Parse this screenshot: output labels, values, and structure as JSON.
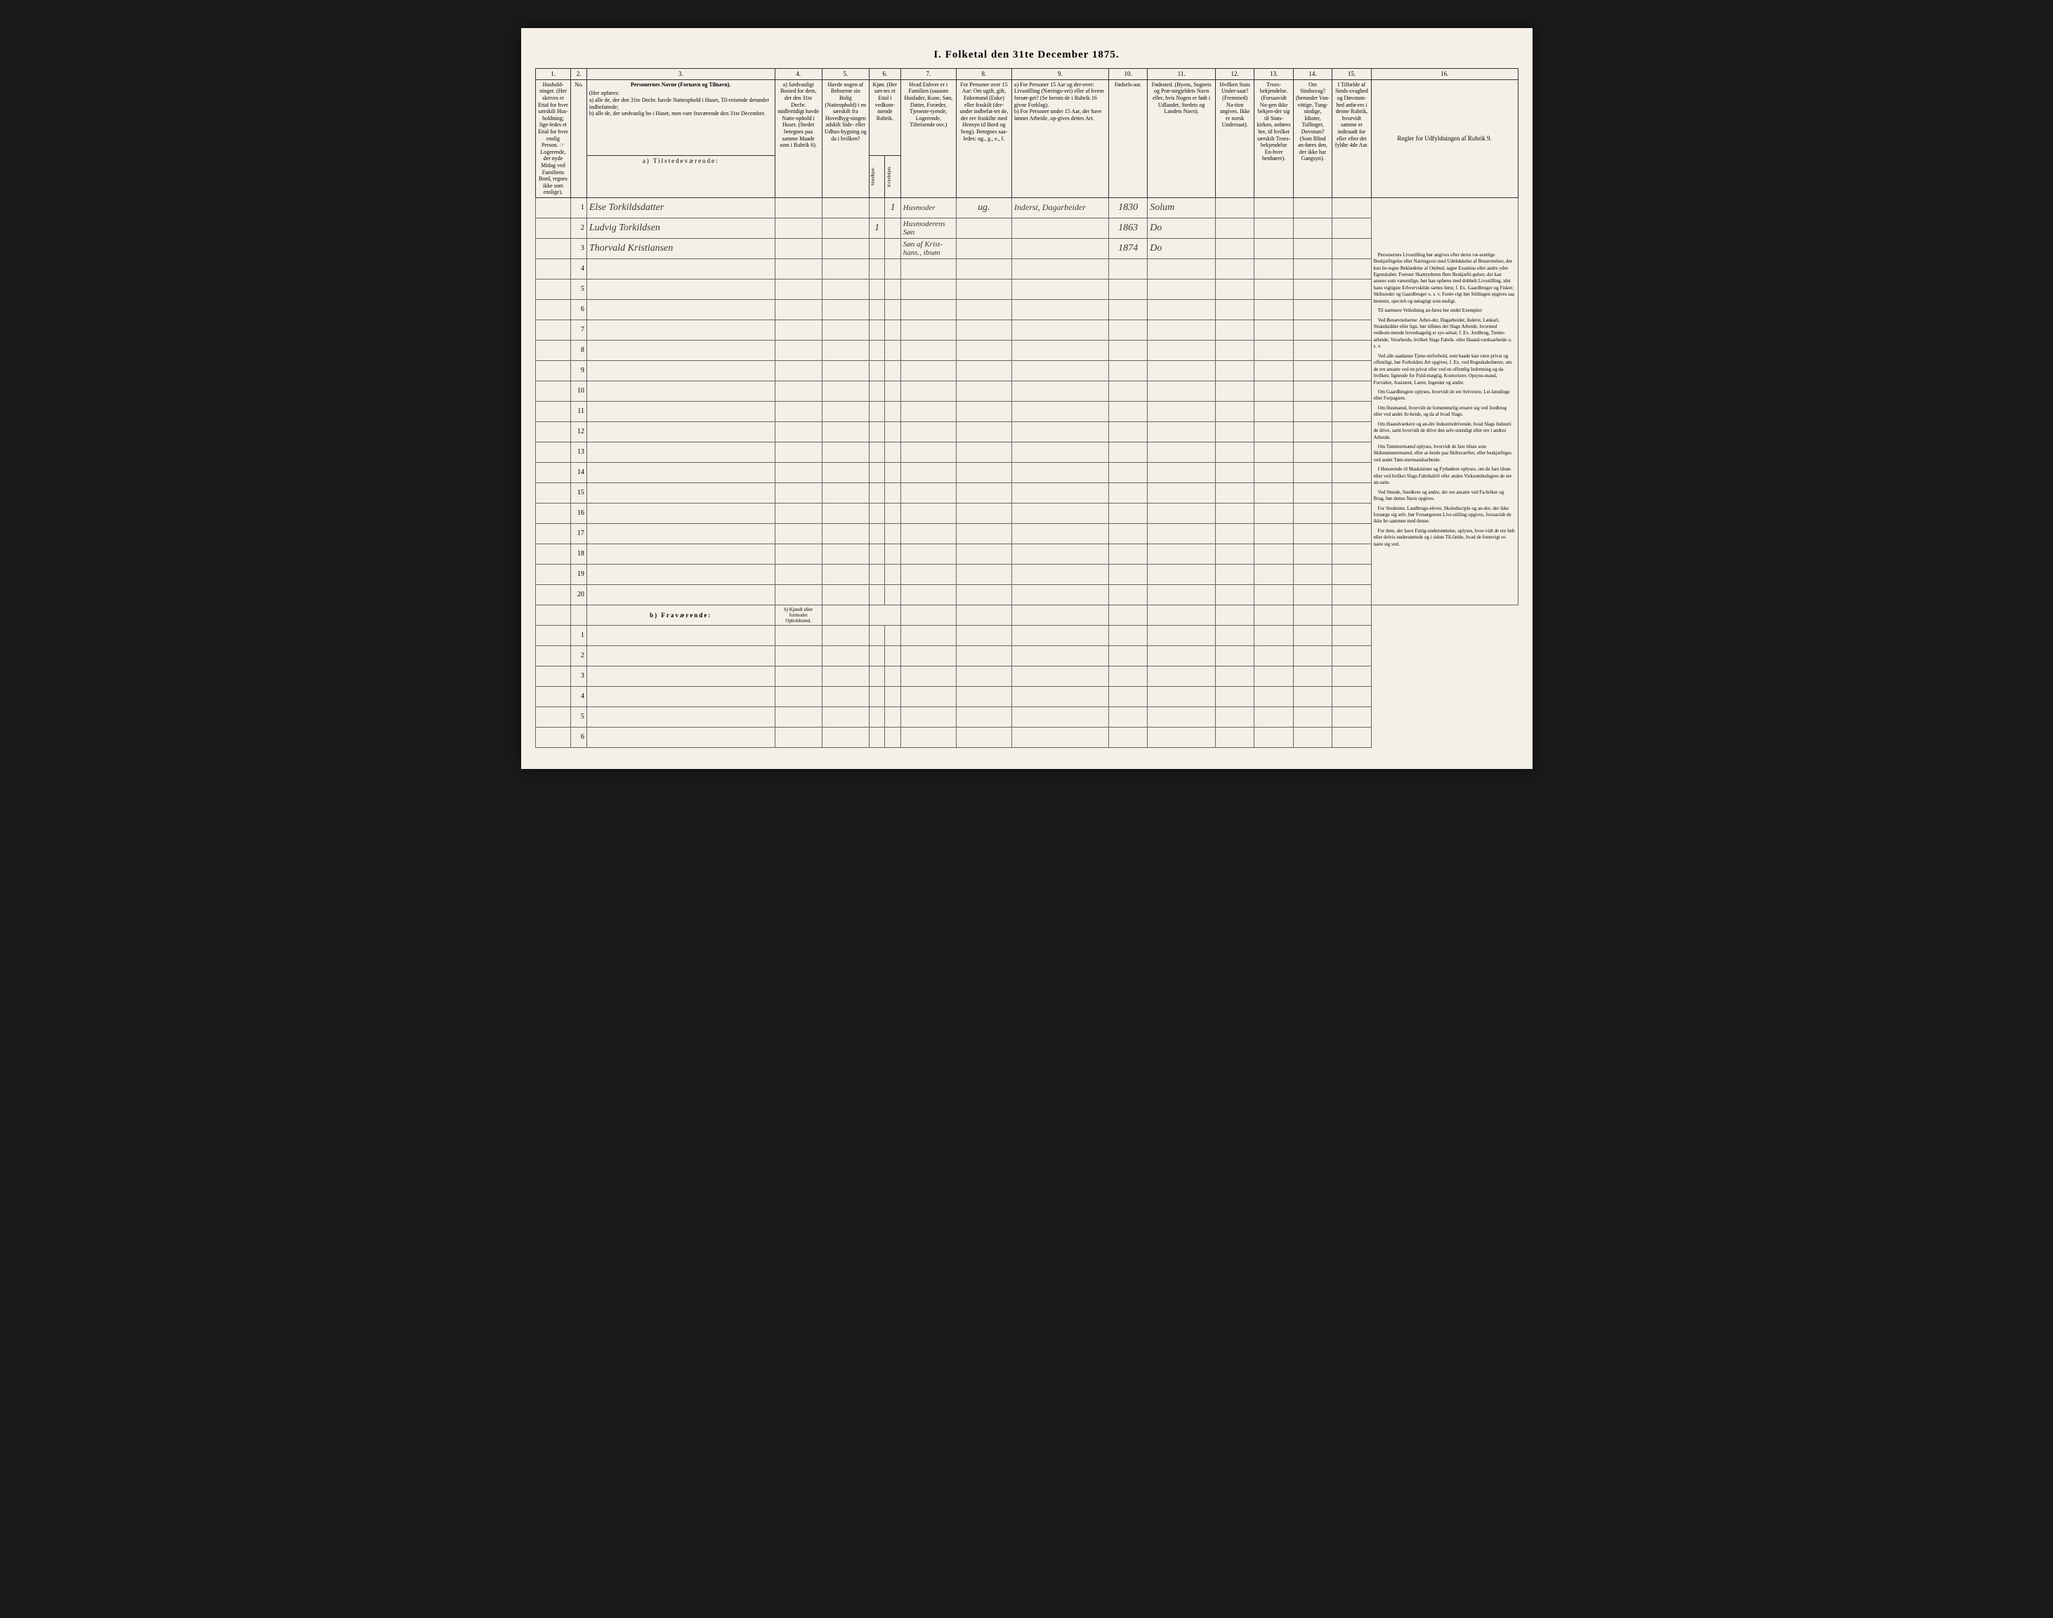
{
  "title": "I. Folketal den 31te December 1875.",
  "header_nums": [
    "1.",
    "2.",
    "3.",
    "4.",
    "5.",
    "6.",
    "7.",
    "8.",
    "9.",
    "10.",
    "11.",
    "12.",
    "13.",
    "14.",
    "15.",
    "16."
  ],
  "headers": {
    "col1": "Hushold-ninger. (Her skrives et Ettal for hver særskilt Hus-holdning; lige-ledes et Ettal for hver enslig Person. ☞ Logerende, der nyde Midag ved Familiens Bord, regnes ikke som enslige).",
    "col2": "No.",
    "col3_title": "Personernes Navne (Fornavn og Tilnavn).",
    "col3_sub": "(Her opføres:\na) alle de, der den 31te Decbr. havde Natteophold i Huset, Til-reisende derunder indbefattede;\nb) alle de, der sædvanlig bo i Huset, men vare fraværende den 31te December.",
    "col4": "a) Sædvanligt Bosted for dem, der den 31te Decbr. midlertidigt havde Natte-ophold i Huset. (Stedet betegnes paa samme Maade som i Rubrik 6).",
    "col5": "Havde nogen af Beboerne sin Bolig (Natteophold) i en særskilt fra Hovedbyg-ningen adskilt Side- eller Udhus-bygning og da i hvilken?",
    "col6": "Kjøn. (Her sæt-tes et Ettal i vedkom-mende Rubrik.",
    "col6_m": "Mandkjøn.",
    "col6_k": "Kvindekjøn.",
    "col7": "Hvad Enhver er i Familien (saasom Husfader, Kone, Søn, Datter, Foræder, Tjeneste-tyende, Logerende, Tilreisende osv.)",
    "col8": "For Personer over 15 Aar: Om ugift, gift, Enkemand (Enke) eller fraskilt (der-under indbefat-tet de, der ere fraskilte med Hensyn til Bord og Seng). Betegnes saa-ledes: ug., g., e., f.",
    "col9": "a) For Personer 15 Aar og der-over: Livsstilling (Nærings-vei) eller af hvem forsør-get? (Se herom de i Rubrik 16 givne Forklag).\nb) For Personer under 15 Aar, der have lønnet Arbeide, op-gives dettes Art.",
    "col10": "Fødsels-aar.",
    "col11": "Fødested. (Byens, Sognets og Præ-stegjeldets Navn eller, hvis Nogen er født i Udlandet, Stedets og Landets Navn).",
    "col12": "Hvilken Stats Under-saat? (Fremmed) Na-tion angives. Ikke er norsk Undersaat).",
    "col13": "Troes-bekjendelse. (Forsaavidt No-gen ikke bekjen-der sig til Stats-kirken, anføres her, til hvilket særskilt Troes-bekjendelse En-hver henhører).",
    "col14": "Om Sindssvag? (herunder Van-vittige, Tung-sindige, Idioter, Tullinger, Dovstum? (Som Blind an-føres den, der ikke har Gangsyn).",
    "col15": "I Tilfælde af Sinds-svaghed og Døvstum-hed anfø-res i denne Rubrik, hvorvidt samme er indtraadt for eller efter det fyldte 4de Aar.",
    "col16_title": "Regler for Udfyldningen af Rubrik 9."
  },
  "section_a": "a) Tilstedeværende:",
  "section_b": "b) Fraværende:",
  "section_b_col4": "b) Kjendt eller formodet Opholdssted.",
  "rows_a": [
    {
      "num": "1",
      "name": "Else Torkildsdatter",
      "kjon_k": "1",
      "fam": "Husmoder",
      "status": "ug.",
      "stilling": "Inderst, Dagarbeider",
      "aar": "1830",
      "sted": "Solum"
    },
    {
      "num": "2",
      "name": "Ludvig Torkildsen",
      "kjon_m": "1",
      "fam": "Husmoderens Søn",
      "status": "",
      "stilling": "",
      "aar": "1863",
      "sted": "Do"
    },
    {
      "num": "3",
      "name": "Thorvald Kristiansen",
      "kjon_m": "",
      "fam": "Søn af Krist-hans., ibsøn",
      "status": "",
      "stilling": "",
      "aar": "1874",
      "sted": "Do"
    },
    {
      "num": "4"
    },
    {
      "num": "5"
    },
    {
      "num": "6"
    },
    {
      "num": "7"
    },
    {
      "num": "8"
    },
    {
      "num": "9"
    },
    {
      "num": "10"
    },
    {
      "num": "11"
    },
    {
      "num": "12"
    },
    {
      "num": "13"
    },
    {
      "num": "14"
    },
    {
      "num": "15"
    },
    {
      "num": "16"
    },
    {
      "num": "17"
    },
    {
      "num": "18"
    },
    {
      "num": "19"
    },
    {
      "num": "20"
    }
  ],
  "rows_b": [
    {
      "num": "1"
    },
    {
      "num": "2"
    },
    {
      "num": "3"
    },
    {
      "num": "4"
    },
    {
      "num": "5"
    },
    {
      "num": "6"
    }
  ],
  "instructions": [
    "Personernes Livsstilling bør angives efter deres væ-sentlige Beskjæftigelse eller Næringsvei med Udelukkelse af Benævnelser, der kun be-tegne Beklædelse af Ombud, tagne Examina eller andre ydre Egenskaber. Forener Skatteyderen flere Beskjæfti-gelser, der kan ansees som væsentlige, bør han opføres med dobbelt Livsstilling, idet hans vigtigste Erhvervskilde sættes først; f. Ex. Gaardbruger og Fisker; Skibsreder og Gaardbruger o. s. v. Forøv-rigt bør Stillingen opgives saa bestemt, specielt og nøiagtigt som muligt.",
    "Til nærmere Veiledning an-føres her endel Exempler:",
    "Ved Benævnelserne: Arbei-der, Dagarbeider, Inderst, Løskarl, Strandsidder eller lign. bør tilføies det Slags Arbeide, hvormed vedkom-mende hovedsagelig er sys-selsat; f. Ex. Jordbrug, Tømte-arbeide, Veiarbeide, hvilket Slags Fabrik- eller Haand-værksarbeide o. s. v.",
    "Ved alle saadanne Tjene-steforhold, som baade kan være privat og offentligt, bør Forholdets Art opgives, f. Ex. ved Regnskabsførere, om de ere ansatte ved en privat eller ved en offentlig Indretning og da hvilken; lignende for Fuld-mægtig, Kontorister, Opsyns-mand, Forvalter, Assistent, Lærer, Ingeniør og andre.",
    "Om Gaardbrugere oplyses, hvorvidt de ere Selveiere, Lei-lændinge eller Forpagtere.",
    "Om Husmænd, hvorvidt de fornemmelig ernære sig ved Jordbrug eller ved andet Ar-beide, og da af hvad Slags.",
    "Om Haandværkere og an-dre Industriedrivende, hvad Slags Industri de drive, samt hvorvidt de drive den selv-stændigt eller ere i andres Arbeide.",
    "Om Tømmermænd oplyses, hvorvidt de fare tilsøs som Skibstømmermænd, eller ar-beide paa Skibsværfter, eller beskjæftiges ved andet Tøm-mermandsarbeide.",
    "I Henseende til Maskinister og Fyrbødere oplyses, om de fare tilsøs eller ved hvilket Slags Fabrikdrift eller anden Virksomhedsgren de ere an-satte.",
    "Ved Smede, Snedkere og andre, der ere ansatte ved Fa-briker og Brug, bør dettes Navn opgives.",
    "For Studenter, Landbrugs-elever, Skoledisciple og an-dre, der ikke forsørge sig selv, bør Forsørgerens Livs-stilling opgives, forsaavidt de ikke bo sammen med denne.",
    "For dem, der have Fattig-understøttelse, oplyses, hvor-vidt de ere helt eller delvis understøttede og i sidste Til-fælde, hvad de forøvrigt er-nære sig ved."
  ]
}
